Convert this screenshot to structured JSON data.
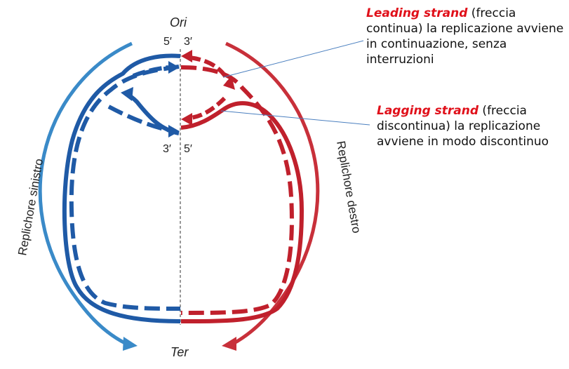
{
  "labels": {
    "ori": "Ori",
    "ter": "Ter",
    "top_5": "5′",
    "top_3": "3′",
    "mid_3": "3′",
    "mid_5": "5′",
    "replichore_left": "Replichore sinistro",
    "replichore_right": "Replichore destro"
  },
  "annotations": {
    "leading": {
      "term": "Leading strand",
      "text": " (freccia continua) la replicazione avviene in continuazione, senza interruzioni"
    },
    "lagging": {
      "term": "Lagging strand",
      "text": " (freccia discontinua) la replicazione avviene in modo discontinuo"
    }
  },
  "colors": {
    "left_replichore": "#1f5aa6",
    "left_outer_arrow": "#3a8ac8",
    "right_replichore": "#c0202c",
    "right_outer_arrow": "#c8303a",
    "highlight": "#e0101a",
    "pointer_line": "#4a7fbf"
  }
}
